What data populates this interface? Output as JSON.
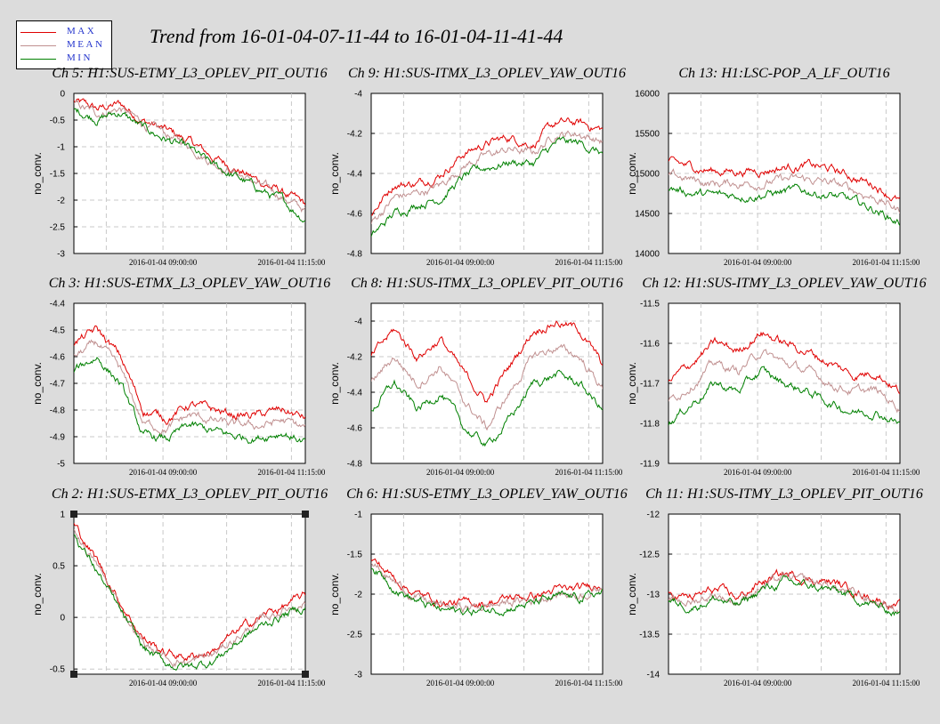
{
  "title": "Trend from 16-01-04-07-11-44 to 16-01-04-11-41-44",
  "legend": [
    {
      "label": "MAX",
      "color": "#e00000"
    },
    {
      "label": "MEAN",
      "color": "#c09090"
    },
    {
      "label": "MIN",
      "color": "#008000"
    }
  ],
  "colors": {
    "max": "#e00000",
    "mean": "#c09090",
    "min": "#008000",
    "background": "#dcdcdc"
  },
  "chart_data": [
    {
      "type": "line",
      "title": "Ch 5: H1:SUS-ETMY_L3_OPLEV_PIT_OUT16",
      "ylabel": "no_conv.",
      "ylim": [
        -3,
        0
      ],
      "yticks": [
        0,
        -0.5,
        -1,
        -1.5,
        -2,
        -2.5,
        -3
      ],
      "ytick_labels": [
        "0",
        "-0.5",
        "-1",
        "-1.5",
        "-2",
        "-2.5",
        "-3"
      ],
      "x": [
        0,
        0.1,
        0.2,
        0.3,
        0.4,
        0.5,
        0.6,
        0.7,
        0.8,
        0.9,
        1.0
      ],
      "xlim": [
        0,
        1
      ],
      "xticks": [
        0.385,
        0.94
      ],
      "xtick_labels": [
        "2016-01-04 09:00:00",
        "2016-01-04 11:15:00"
      ],
      "grid": true,
      "series": [
        {
          "name": "MAX",
          "values": [
            -0.15,
            -0.3,
            -0.2,
            -0.5,
            -0.7,
            -0.9,
            -1.2,
            -1.4,
            -1.65,
            -1.85,
            -2.1
          ]
        },
        {
          "name": "MEAN",
          "values": [
            -0.22,
            -0.38,
            -0.28,
            -0.58,
            -0.78,
            -0.98,
            -1.28,
            -1.48,
            -1.72,
            -1.93,
            -2.2
          ]
        },
        {
          "name": "MIN",
          "values": [
            -0.3,
            -0.46,
            -0.36,
            -0.66,
            -0.86,
            -1.06,
            -1.36,
            -1.56,
            -1.8,
            -2.02,
            -2.35
          ]
        }
      ]
    },
    {
      "type": "line",
      "title": "Ch 9: H1:SUS-ITMX_L3_OPLEV_YAW_OUT16",
      "ylabel": "no_conv.",
      "ylim": [
        -4.8,
        -4
      ],
      "yticks": [
        -4,
        -4.2,
        -4.4,
        -4.6,
        -4.8
      ],
      "ytick_labels": [
        "-4",
        "-4.2",
        "-4.4",
        "-4.6",
        "-4.8"
      ],
      "x": [
        0,
        0.1,
        0.2,
        0.3,
        0.4,
        0.5,
        0.6,
        0.7,
        0.8,
        0.9,
        1.0
      ],
      "xlim": [
        0,
        1
      ],
      "xticks": [
        0.385,
        0.94
      ],
      "xtick_labels": [
        "2016-01-04 09:00:00",
        "2016-01-04 11:15:00"
      ],
      "grid": true,
      "series": [
        {
          "name": "MAX",
          "values": [
            -4.6,
            -4.45,
            -4.45,
            -4.4,
            -4.3,
            -4.25,
            -4.22,
            -4.25,
            -4.15,
            -4.15,
            -4.18
          ]
        },
        {
          "name": "MEAN",
          "values": [
            -4.65,
            -4.52,
            -4.5,
            -4.46,
            -4.36,
            -4.31,
            -4.28,
            -4.3,
            -4.2,
            -4.2,
            -4.24
          ]
        },
        {
          "name": "MIN",
          "values": [
            -4.72,
            -4.6,
            -4.55,
            -4.52,
            -4.42,
            -4.37,
            -4.34,
            -4.35,
            -4.25,
            -4.25,
            -4.3
          ]
        }
      ]
    },
    {
      "type": "line",
      "title": "Ch 13: H1:LSC-POP_A_LF_OUT16",
      "ylabel": "no_conv.",
      "ylim": [
        14000,
        16000
      ],
      "yticks": [
        16000,
        15500,
        15000,
        14500,
        14000
      ],
      "ytick_labels": [
        "16000",
        "15500",
        "15000",
        "14500",
        "14000"
      ],
      "x": [
        0,
        0.1,
        0.2,
        0.3,
        0.4,
        0.5,
        0.6,
        0.7,
        0.8,
        0.9,
        1.0
      ],
      "xlim": [
        0,
        1
      ],
      "xticks": [
        0.385,
        0.94
      ],
      "xtick_labels": [
        "2016-01-04 09:00:00",
        "2016-01-04 11:15:00"
      ],
      "grid": true,
      "series": [
        {
          "name": "MAX",
          "values": [
            15130,
            15080,
            15030,
            15030,
            15040,
            15080,
            15100,
            15050,
            14950,
            14850,
            14650
          ]
        },
        {
          "name": "MEAN",
          "values": [
            14980,
            14920,
            14870,
            14880,
            14880,
            14920,
            14920,
            14880,
            14790,
            14690,
            14530
          ]
        },
        {
          "name": "MIN",
          "values": [
            14820,
            14760,
            14720,
            14730,
            14740,
            14770,
            14780,
            14730,
            14640,
            14540,
            14380
          ]
        }
      ]
    },
    {
      "type": "line",
      "title": "Ch 3: H1:SUS-ETMX_L3_OPLEV_YAW_OUT16",
      "ylabel": "no_conv.",
      "ylim": [
        -5,
        -4.4
      ],
      "yticks": [
        -4.4,
        -4.5,
        -4.6,
        -4.7,
        -4.8,
        -4.9,
        -5
      ],
      "ytick_labels": [
        "-4.4",
        "-4.5",
        "-4.6",
        "-4.7",
        "-4.8",
        "-4.9",
        "-5"
      ],
      "x": [
        0,
        0.1,
        0.2,
        0.3,
        0.4,
        0.5,
        0.6,
        0.7,
        0.8,
        0.9,
        1.0
      ],
      "xlim": [
        0,
        1
      ],
      "xticks": [
        0.385,
        0.94
      ],
      "xtick_labels": [
        "2016-01-04 09:00:00",
        "2016-01-04 11:15:00"
      ],
      "grid": true,
      "series": [
        {
          "name": "MAX",
          "values": [
            -4.55,
            -4.5,
            -4.6,
            -4.8,
            -4.83,
            -4.78,
            -4.8,
            -4.82,
            -4.82,
            -4.8,
            -4.83
          ]
        },
        {
          "name": "MEAN",
          "values": [
            -4.6,
            -4.55,
            -4.65,
            -4.85,
            -4.87,
            -4.82,
            -4.84,
            -4.86,
            -4.86,
            -4.84,
            -4.87
          ]
        },
        {
          "name": "MIN",
          "values": [
            -4.65,
            -4.6,
            -4.7,
            -4.9,
            -4.91,
            -4.86,
            -4.88,
            -4.9,
            -4.9,
            -4.88,
            -4.92
          ]
        }
      ]
    },
    {
      "type": "line",
      "title": "Ch 8: H1:SUS-ITMX_L3_OPLEV_PIT_OUT16",
      "ylabel": "no_conv.",
      "ylim": [
        -4.8,
        -3.9
      ],
      "yticks": [
        -4,
        -4.2,
        -4.4,
        -4.6,
        -4.8
      ],
      "ytick_labels": [
        "-4",
        "-4.2",
        "-4.4",
        "-4.6",
        "-4.8"
      ],
      "x": [
        0,
        0.1,
        0.2,
        0.3,
        0.4,
        0.5,
        0.6,
        0.7,
        0.8,
        0.9,
        1.0
      ],
      "xlim": [
        0,
        1
      ],
      "xticks": [
        0.385,
        0.94
      ],
      "xtick_labels": [
        "2016-01-04 09:00:00",
        "2016-01-04 11:15:00"
      ],
      "grid": true,
      "series": [
        {
          "name": "MAX",
          "values": [
            -4.2,
            -4.05,
            -4.2,
            -4.1,
            -4.3,
            -4.45,
            -4.25,
            -4.05,
            -4.0,
            -4.05,
            -4.25
          ]
        },
        {
          "name": "MEAN",
          "values": [
            -4.35,
            -4.2,
            -4.35,
            -4.25,
            -4.45,
            -4.6,
            -4.4,
            -4.2,
            -4.15,
            -4.2,
            -4.38
          ]
        },
        {
          "name": "MIN",
          "values": [
            -4.5,
            -4.35,
            -4.5,
            -4.4,
            -4.6,
            -4.7,
            -4.55,
            -4.35,
            -4.3,
            -4.35,
            -4.5
          ]
        }
      ]
    },
    {
      "type": "line",
      "title": "Ch 12: H1:SUS-ITMY_L3_OPLEV_YAW_OUT16",
      "ylabel": "no_conv.",
      "ylim": [
        -11.9,
        -11.5
      ],
      "yticks": [
        -11.5,
        -11.6,
        -11.7,
        -11.8,
        -11.9
      ],
      "ytick_labels": [
        "-11.5",
        "-11.6",
        "-11.7",
        "-11.8",
        "-11.9"
      ],
      "x": [
        0,
        0.1,
        0.2,
        0.3,
        0.4,
        0.5,
        0.6,
        0.7,
        0.8,
        0.9,
        1.0
      ],
      "xlim": [
        0,
        1
      ],
      "xticks": [
        0.385,
        0.94
      ],
      "xtick_labels": [
        "2016-01-04 09:00:00",
        "2016-01-04 11:15:00"
      ],
      "grid": true,
      "series": [
        {
          "name": "MAX",
          "values": [
            -11.7,
            -11.65,
            -11.6,
            -11.62,
            -11.57,
            -11.6,
            -11.62,
            -11.65,
            -11.68,
            -11.67,
            -11.72
          ]
        },
        {
          "name": "MEAN",
          "values": [
            -11.75,
            -11.7,
            -11.65,
            -11.67,
            -11.62,
            -11.65,
            -11.67,
            -11.7,
            -11.72,
            -11.72,
            -11.76
          ]
        },
        {
          "name": "MIN",
          "values": [
            -11.8,
            -11.75,
            -11.7,
            -11.72,
            -11.67,
            -11.7,
            -11.72,
            -11.75,
            -11.77,
            -11.77,
            -11.8
          ]
        }
      ]
    },
    {
      "type": "line",
      "title": "Ch 2: H1:SUS-ETMX_L3_OPLEV_PIT_OUT16",
      "ylabel": "no_conv.",
      "ylim": [
        -0.55,
        1
      ],
      "yticks": [
        1,
        0.5,
        0,
        -0.5
      ],
      "ytick_labels": [
        "1",
        "0.5",
        "0",
        "-0.5"
      ],
      "x": [
        0,
        0.1,
        0.2,
        0.3,
        0.4,
        0.5,
        0.6,
        0.7,
        0.8,
        0.9,
        1.0
      ],
      "xlim": [
        0,
        1
      ],
      "xticks": [
        0.385,
        0.94
      ],
      "xtick_labels": [
        "2016-01-04 09:00:00",
        "2016-01-04 11:15:00"
      ],
      "grid": true,
      "series": [
        {
          "name": "MAX",
          "values": [
            0.9,
            0.55,
            0.15,
            -0.2,
            -0.35,
            -0.38,
            -0.32,
            -0.15,
            0.0,
            0.1,
            0.2
          ]
        },
        {
          "name": "MEAN",
          "values": [
            0.85,
            0.5,
            0.1,
            -0.25,
            -0.4,
            -0.43,
            -0.37,
            -0.2,
            -0.05,
            0.07,
            0.15
          ]
        },
        {
          "name": "MIN",
          "values": [
            0.8,
            0.45,
            0.05,
            -0.3,
            -0.45,
            -0.48,
            -0.42,
            -0.25,
            -0.1,
            0.02,
            0.1
          ]
        }
      ]
    },
    {
      "type": "line",
      "title": "Ch 6: H1:SUS-ETMY_L3_OPLEV_YAW_OUT16",
      "ylabel": "no_conv.",
      "ylim": [
        -3,
        -1
      ],
      "yticks": [
        -1,
        -1.5,
        -2,
        -2.5,
        -3
      ],
      "ytick_labels": [
        "-1",
        "-1.5",
        "-2",
        "-2.5",
        "-3"
      ],
      "x": [
        0,
        0.1,
        0.2,
        0.3,
        0.4,
        0.5,
        0.6,
        0.7,
        0.8,
        0.9,
        1.0
      ],
      "xlim": [
        0,
        1
      ],
      "xticks": [
        0.385,
        0.94
      ],
      "xtick_labels": [
        "2016-01-04 09:00:00",
        "2016-01-04 11:15:00"
      ],
      "grid": true,
      "series": [
        {
          "name": "MAX",
          "values": [
            -1.55,
            -1.8,
            -2.0,
            -2.1,
            -2.12,
            -2.1,
            -2.05,
            -2.02,
            -1.95,
            -1.95,
            -1.85
          ]
        },
        {
          "name": "MEAN",
          "values": [
            -1.6,
            -1.85,
            -2.05,
            -2.15,
            -2.17,
            -2.15,
            -2.1,
            -2.07,
            -2.0,
            -2.0,
            -1.92
          ]
        },
        {
          "name": "MIN",
          "values": [
            -1.65,
            -1.9,
            -2.1,
            -2.2,
            -2.22,
            -2.2,
            -2.15,
            -2.12,
            -2.05,
            -2.05,
            -1.98
          ]
        }
      ]
    },
    {
      "type": "line",
      "title": "Ch 11: H1:SUS-ITMY_L3_OPLEV_PIT_OUT16",
      "ylabel": "no_conv.",
      "ylim": [
        -14,
        -12
      ],
      "yticks": [
        -12,
        -12.5,
        -13,
        -13.5,
        -14
      ],
      "ytick_labels": [
        "-12",
        "-12.5",
        "-13",
        "-13.5",
        "-14"
      ],
      "x": [
        0,
        0.1,
        0.2,
        0.3,
        0.4,
        0.5,
        0.6,
        0.7,
        0.8,
        0.9,
        1.0
      ],
      "xlim": [
        0,
        1
      ],
      "xticks": [
        0.385,
        0.94
      ],
      "xtick_labels": [
        "2016-01-04 09:00:00",
        "2016-01-04 11:15:00"
      ],
      "grid": true,
      "series": [
        {
          "name": "MAX",
          "values": [
            -13.0,
            -13.05,
            -12.95,
            -13.05,
            -12.85,
            -12.75,
            -12.8,
            -12.85,
            -12.95,
            -13.05,
            -13.15
          ]
        },
        {
          "name": "MEAN",
          "values": [
            -13.05,
            -13.1,
            -13.0,
            -13.1,
            -12.9,
            -12.8,
            -12.85,
            -12.9,
            -13.0,
            -13.1,
            -13.2
          ]
        },
        {
          "name": "MIN",
          "values": [
            -13.1,
            -13.15,
            -13.05,
            -13.15,
            -12.95,
            -12.85,
            -12.9,
            -12.95,
            -13.05,
            -13.15,
            -13.25
          ]
        }
      ]
    }
  ]
}
